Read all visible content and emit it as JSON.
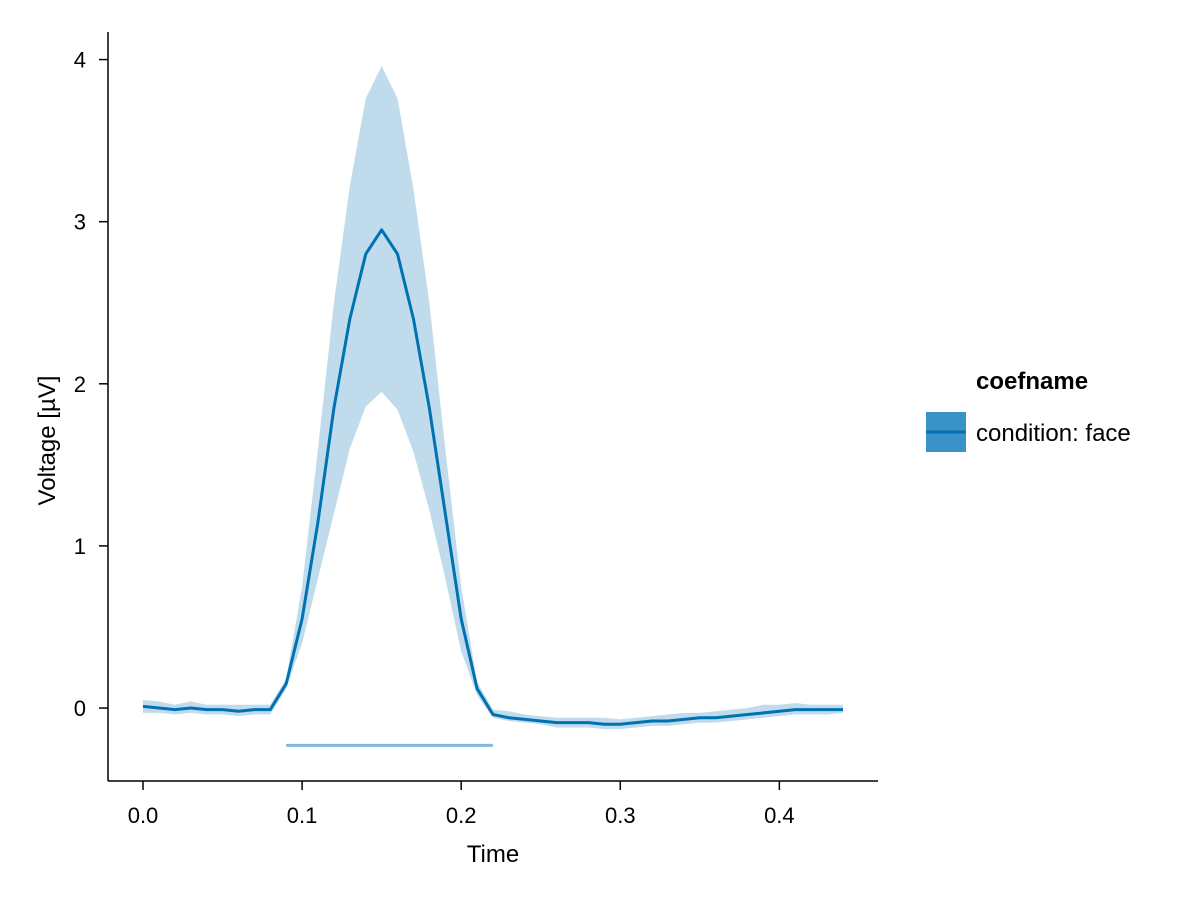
{
  "chart_data": {
    "type": "line",
    "title": "",
    "xlabel": "Time",
    "ylabel": "Voltage [µV]",
    "xlim": [
      -0.022,
      0.462
    ],
    "ylim": [
      -0.45,
      4.17
    ],
    "xticks": [
      0.0,
      0.1,
      0.2,
      0.3,
      0.4
    ],
    "xtick_labels": [
      "0.0",
      "0.1",
      "0.2",
      "0.3",
      "0.4"
    ],
    "yticks": [
      0,
      1,
      2,
      3,
      4
    ],
    "ytick_labels": [
      "0",
      "1",
      "2",
      "3",
      "4"
    ],
    "grid": false,
    "legend": {
      "title": "coefname",
      "placement": "right",
      "entries": [
        "condition: face"
      ]
    },
    "colors": {
      "line": "#0072b2",
      "band": "#c0dbec",
      "legend_patch": "#3a93c8",
      "significance": "#7fb8e0"
    },
    "series": [
      {
        "name": "condition: face",
        "x": [
          0.0,
          0.01,
          0.02,
          0.03,
          0.04,
          0.05,
          0.06,
          0.07,
          0.08,
          0.09,
          0.1,
          0.11,
          0.12,
          0.13,
          0.14,
          0.15,
          0.16,
          0.17,
          0.18,
          0.19,
          0.2,
          0.21,
          0.22,
          0.23,
          0.24,
          0.25,
          0.26,
          0.27,
          0.28,
          0.29,
          0.3,
          0.31,
          0.32,
          0.33,
          0.34,
          0.35,
          0.36,
          0.37,
          0.38,
          0.39,
          0.4,
          0.41,
          0.42,
          0.43,
          0.44
        ],
        "mean": [
          0.01,
          0.0,
          -0.01,
          0.0,
          -0.01,
          -0.01,
          -0.02,
          -0.01,
          -0.01,
          0.15,
          0.55,
          1.15,
          1.85,
          2.4,
          2.8,
          2.95,
          2.8,
          2.4,
          1.85,
          1.2,
          0.55,
          0.12,
          -0.04,
          -0.06,
          -0.07,
          -0.08,
          -0.09,
          -0.09,
          -0.09,
          -0.1,
          -0.1,
          -0.09,
          -0.08,
          -0.08,
          -0.07,
          -0.06,
          -0.06,
          -0.05,
          -0.04,
          -0.03,
          -0.02,
          -0.01,
          -0.01,
          -0.01,
          -0.01
        ],
        "lower": [
          -0.03,
          -0.03,
          -0.04,
          -0.03,
          -0.04,
          -0.04,
          -0.05,
          -0.04,
          -0.04,
          0.12,
          0.4,
          0.8,
          1.2,
          1.6,
          1.86,
          1.95,
          1.84,
          1.58,
          1.22,
          0.8,
          0.35,
          0.08,
          -0.06,
          -0.08,
          -0.09,
          -0.1,
          -0.12,
          -0.12,
          -0.12,
          -0.13,
          -0.13,
          -0.12,
          -0.11,
          -0.11,
          -0.1,
          -0.09,
          -0.09,
          -0.08,
          -0.07,
          -0.06,
          -0.05,
          -0.04,
          -0.04,
          -0.04,
          -0.03
        ],
        "upper": [
          0.05,
          0.04,
          0.02,
          0.04,
          0.02,
          0.02,
          0.02,
          0.02,
          0.02,
          0.18,
          0.75,
          1.6,
          2.5,
          3.22,
          3.76,
          3.96,
          3.76,
          3.2,
          2.5,
          1.6,
          0.75,
          0.16,
          -0.01,
          -0.02,
          -0.04,
          -0.05,
          -0.06,
          -0.06,
          -0.06,
          -0.06,
          -0.07,
          -0.06,
          -0.05,
          -0.04,
          -0.03,
          -0.03,
          -0.02,
          -0.01,
          0.0,
          0.02,
          0.02,
          0.03,
          0.02,
          0.02,
          0.02
        ]
      }
    ],
    "significance": {
      "x_start": 0.09,
      "x_end": 0.22,
      "y": -0.23
    }
  }
}
